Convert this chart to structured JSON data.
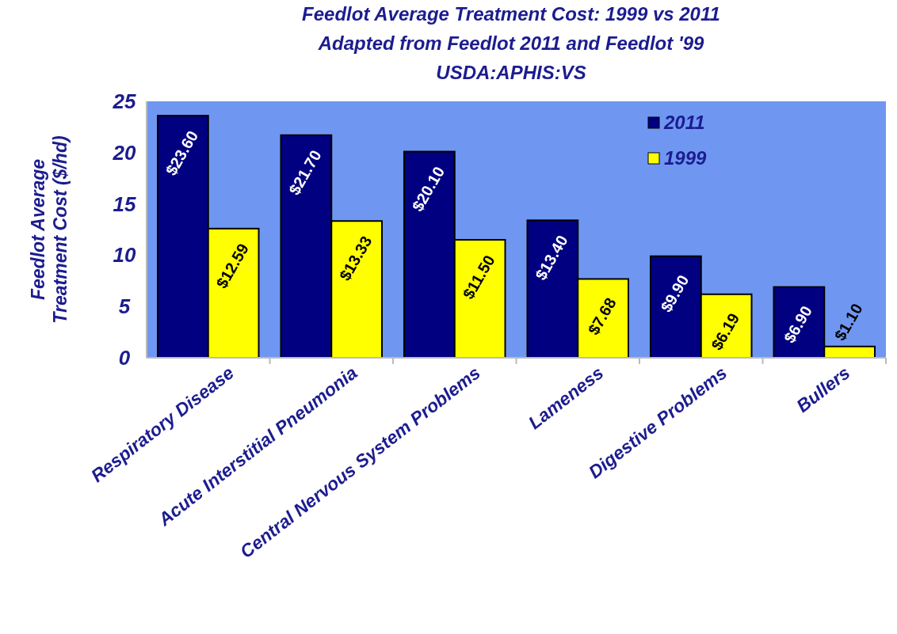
{
  "chart_data": {
    "type": "bar",
    "title": "Feedlot Average Treatment Cost:  1999 vs 2011",
    "subtitle": "Adapted from Feedlot 2011 and Feedlot '99",
    "annotations": [
      "USDA:APHIS:VS"
    ],
    "ylabel": "Feedlot Average Treatment Cost ($/hd)",
    "categories": [
      "Respiratory Disease",
      "Acute Interstitial Pneumonia",
      "Central Nervous System Problems",
      "Lameness",
      "Digestive Problems",
      "Bullers"
    ],
    "series": [
      {
        "name": "2011",
        "color": "#000080",
        "values": [
          23.6,
          21.7,
          20.1,
          13.4,
          9.9,
          6.9
        ],
        "value_labels": [
          "$23.60",
          "$21.70",
          "$20.10",
          "$13.40",
          "$9.90",
          "$6.90"
        ]
      },
      {
        "name": "1999",
        "color": "#ffff00",
        "values": [
          12.59,
          13.33,
          11.5,
          7.68,
          6.19,
          1.1
        ],
        "value_labels": [
          "$12.59",
          "$13.33",
          "$11.50",
          "$7.68",
          "$6.19",
          "$1.10"
        ]
      }
    ],
    "ylim": [
      0,
      25
    ],
    "yticks": [
      0,
      5,
      10,
      15,
      20,
      25
    ],
    "grid": false,
    "legend": "top right"
  }
}
